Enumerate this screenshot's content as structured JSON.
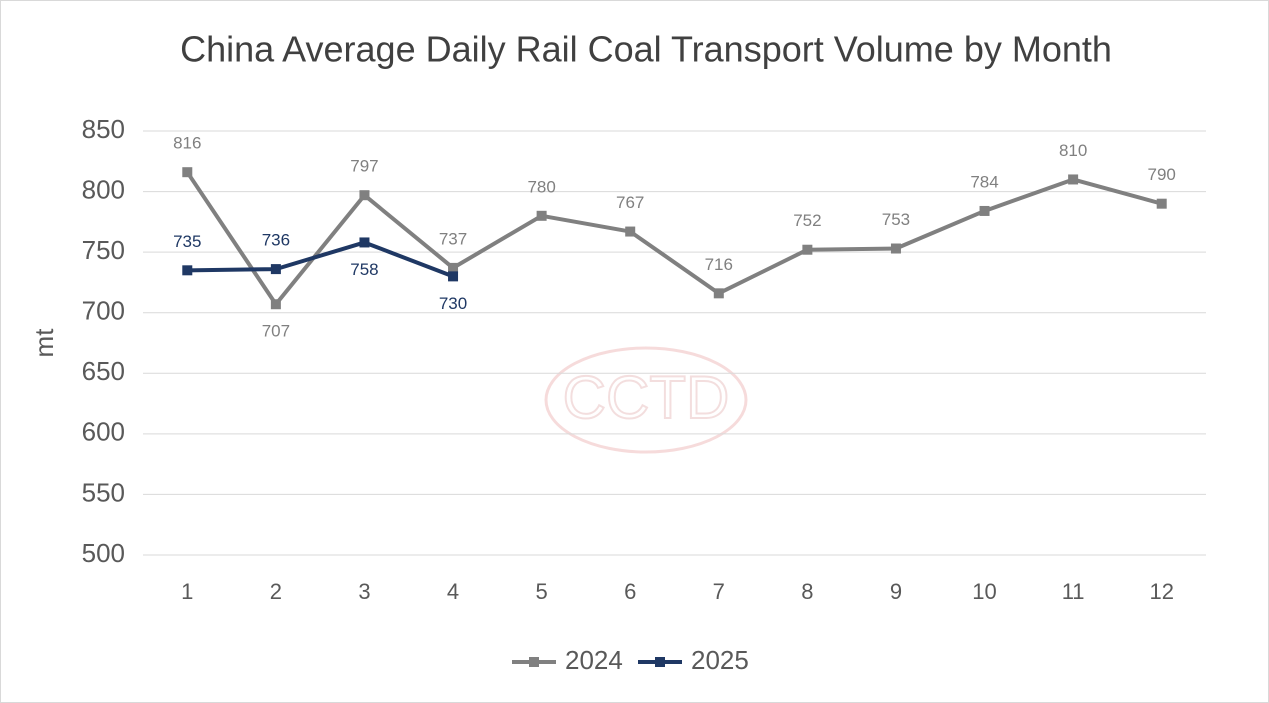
{
  "chart_data": {
    "type": "line",
    "title": "China Average Daily Rail Coal Transport Volume by Month",
    "y_label": "mt",
    "watermark": "CCTD",
    "categories": [
      "1",
      "2",
      "3",
      "4",
      "5",
      "6",
      "7",
      "8",
      "9",
      "10",
      "11",
      "12"
    ],
    "series": [
      {
        "name": "2024",
        "color": "#808080",
        "values": [
          816,
          707,
          797,
          737,
          780,
          767,
          716,
          752,
          753,
          784,
          810,
          790
        ]
      },
      {
        "name": "2025",
        "color": "#1f3864",
        "values": [
          735,
          736,
          758,
          730,
          null,
          null,
          null,
          null,
          null,
          null,
          null,
          null
        ]
      }
    ],
    "ylim": [
      500,
      850
    ],
    "yticks": [
      500,
      550,
      600,
      650,
      700,
      750,
      800,
      850
    ],
    "grid": true,
    "legend": "bottom"
  }
}
